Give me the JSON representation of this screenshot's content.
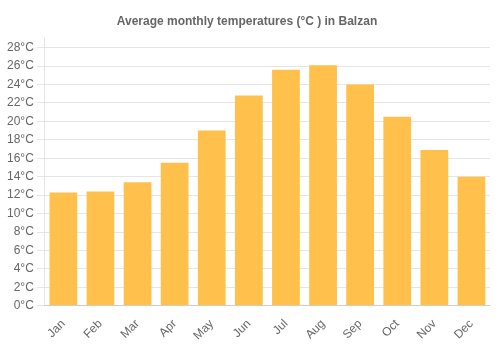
{
  "chart_data": {
    "type": "bar",
    "title": "Average monthly temperatures (°C ) in Balzan",
    "categories": [
      "Jan",
      "Feb",
      "Mar",
      "Apr",
      "May",
      "Jun",
      "Jul",
      "Aug",
      "Sep",
      "Oct",
      "Nov",
      "Dec"
    ],
    "values": [
      12.3,
      12.4,
      13.4,
      15.5,
      19.0,
      22.8,
      25.6,
      26.1,
      24.0,
      20.5,
      16.9,
      14.0
    ],
    "color": "#FFC04C",
    "ylim": [
      0,
      29
    ],
    "yticks": [
      {
        "value": 0,
        "label": "0°C"
      },
      {
        "value": 2,
        "label": "2°C"
      },
      {
        "value": 4,
        "label": "4°C"
      },
      {
        "value": 6,
        "label": "6°C"
      },
      {
        "value": 8,
        "label": "8°C"
      },
      {
        "value": 10,
        "label": "10°C"
      },
      {
        "value": 12,
        "label": "12°C"
      },
      {
        "value": 14,
        "label": "14°C"
      },
      {
        "value": 16,
        "label": "16°C"
      },
      {
        "value": 18,
        "label": "18°C"
      },
      {
        "value": 20,
        "label": "20°C"
      },
      {
        "value": 22,
        "label": "22°C"
      },
      {
        "value": 24,
        "label": "24°C"
      },
      {
        "value": 26,
        "label": "26°C"
      },
      {
        "value": 28,
        "label": "28°C"
      }
    ],
    "grid": true
  }
}
